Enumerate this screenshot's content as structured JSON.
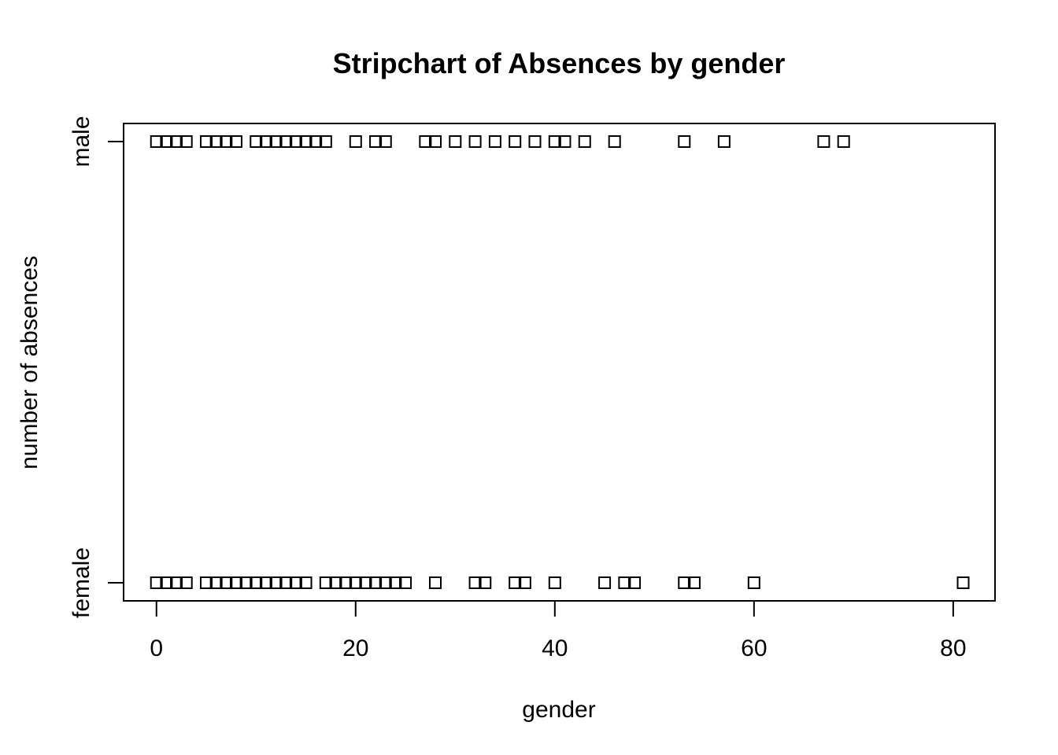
{
  "chart_data": {
    "type": "scatter",
    "title": "Stripchart of Absences by gender",
    "xlabel": "gender",
    "ylabel": "number of absences",
    "xlim": [
      -3.3,
      84.2
    ],
    "x_ticks": [
      0,
      20,
      40,
      60,
      80
    ],
    "categories": [
      "female",
      "male"
    ],
    "marker": "open-square",
    "grid": false,
    "series": [
      {
        "name": "male",
        "values": [
          0,
          1,
          2,
          3,
          5,
          6,
          7,
          8,
          10,
          11,
          12,
          13,
          14,
          15,
          16,
          17,
          20,
          22,
          23,
          27,
          28,
          30,
          32,
          34,
          36,
          38,
          40,
          41,
          43,
          46,
          53,
          57,
          67,
          69
        ]
      },
      {
        "name": "female",
        "values": [
          0,
          1,
          2,
          3,
          5,
          6,
          7,
          8,
          9,
          10,
          11,
          12,
          13,
          14,
          15,
          17,
          18,
          19,
          20,
          21,
          22,
          23,
          24,
          25,
          28,
          32,
          33,
          36,
          37,
          40,
          45,
          47,
          48,
          53,
          54,
          60,
          81
        ]
      }
    ]
  }
}
